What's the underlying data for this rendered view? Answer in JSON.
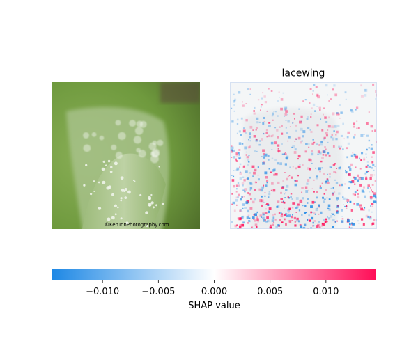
{
  "chart_data": {
    "type": "heatmap",
    "panels": [
      {
        "role": "input-image",
        "title": "",
        "description_colors": {
          "background": "#6f9a3e",
          "leaf": "#a8c48a",
          "droplets": "#f2f6ee"
        },
        "watermark_text": "©KenTonPhotography.com"
      },
      {
        "role": "shap-map",
        "title": "lacewing"
      }
    ],
    "colorbar": {
      "label": "SHAP value",
      "range": [
        -0.0145,
        0.0145
      ],
      "ticks": [
        -0.01,
        -0.005,
        0.0,
        0.005,
        0.01
      ],
      "tick_labels": [
        "−0.010",
        "−0.005",
        "0.000",
        "0.005",
        "0.010"
      ],
      "colors": {
        "negative": "#1e88e5",
        "zero": "#ffffff",
        "positive": "#ff0d57"
      }
    }
  }
}
